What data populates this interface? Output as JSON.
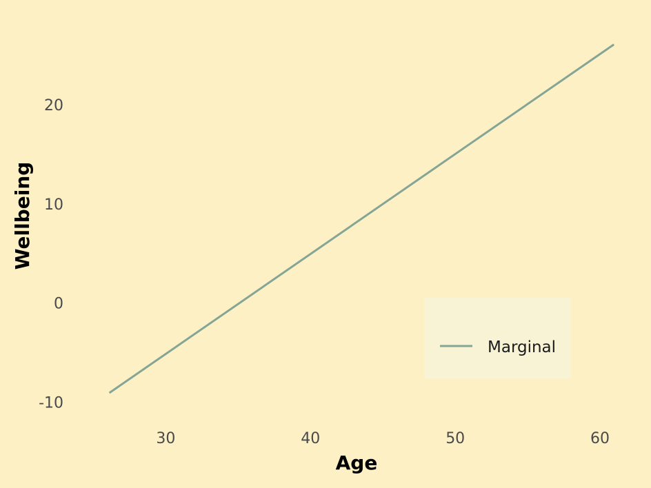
{
  "chart_data": {
    "type": "line",
    "title": "",
    "xlabel": "Age",
    "ylabel": "Wellbeing",
    "xlim": [
      24.5,
      62
    ],
    "ylim": [
      -11.3,
      28.5
    ],
    "x_ticks": [
      30,
      40,
      50,
      60
    ],
    "y_ticks": [
      -10,
      0,
      10,
      20
    ],
    "grid": false,
    "legend_position": "bottom-right",
    "series": [
      {
        "name": "Marginal",
        "color": "#84a595",
        "x": [
          26.1,
          60.96
        ],
        "y": [
          -9.07,
          26.1
        ]
      }
    ]
  },
  "colors": {
    "background": "#fcf0c4",
    "legend_background": "#f9f3d6"
  }
}
